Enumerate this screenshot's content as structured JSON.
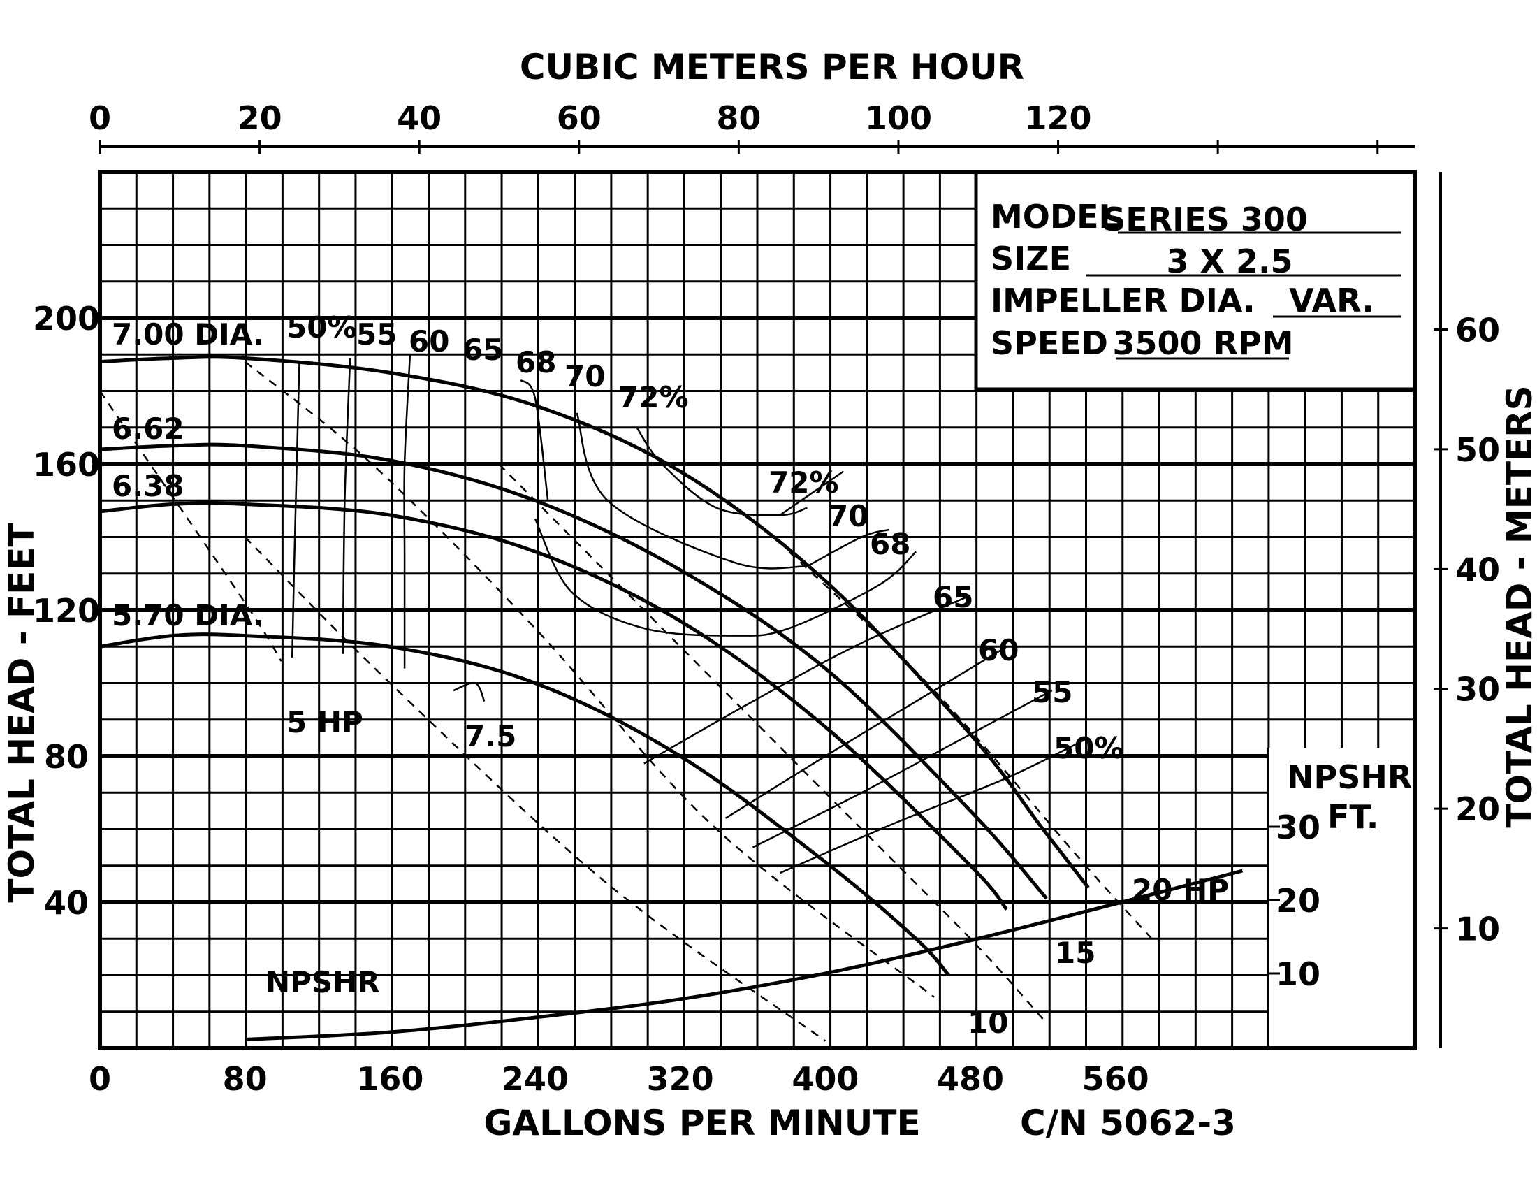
{
  "chart_data": {
    "type": "line",
    "title": "",
    "top_axis": {
      "label": "CUBIC METERS PER HOUR",
      "ticks": [
        "0",
        "20",
        "40",
        "60",
        "80",
        "100",
        "120"
      ],
      "range": [
        0,
        165
      ]
    },
    "x_axis": {
      "label": "GALLONS PER MINUTE",
      "ticks": [
        "0",
        "80",
        "160",
        "240",
        "320",
        "400",
        "480",
        "560"
      ],
      "range": [
        0,
        725
      ]
    },
    "y_axis": {
      "label": "TOTAL HEAD - FEET",
      "ticks": [
        "40",
        "80",
        "120",
        "160",
        "200"
      ],
      "range": [
        0,
        240
      ]
    },
    "right_axis": {
      "label": "TOTAL HEAD - METERS",
      "ticks": [
        "10",
        "20",
        "30",
        "40",
        "50",
        "60"
      ],
      "range": [
        0,
        73.2
      ]
    },
    "npshr_axis": {
      "title_line1": "NPSHR",
      "title_line2": "FT.",
      "ticks": [
        "10",
        "20",
        "30"
      ]
    },
    "grid": true,
    "info_box": {
      "model_label": "MODEL",
      "model_value": "SERIES 300",
      "size_label": "SIZE",
      "size_value": "3 X 2.5",
      "impeller_label": "IMPELLER DIA.",
      "impeller_value": "VAR.",
      "speed_label": "SPEED",
      "speed_value": "3500 RPM"
    },
    "catalog_number": "C/N 5062-3",
    "impeller_curves": [
      {
        "label": "7.00 DIA.",
        "points": [
          [
            0,
            188
          ],
          [
            40,
            189
          ],
          [
            80,
            189
          ],
          [
            160,
            185
          ],
          [
            240,
            176
          ],
          [
            320,
            158
          ],
          [
            400,
            128
          ],
          [
            480,
            86
          ],
          [
            520,
            60
          ],
          [
            545,
            44
          ]
        ]
      },
      {
        "label": "6.62",
        "points": [
          [
            0,
            164
          ],
          [
            40,
            165
          ],
          [
            80,
            165
          ],
          [
            160,
            161
          ],
          [
            240,
            150
          ],
          [
            320,
            131
          ],
          [
            400,
            104
          ],
          [
            480,
            65
          ],
          [
            522,
            41
          ]
        ]
      },
      {
        "label": "6.38",
        "points": [
          [
            0,
            147
          ],
          [
            40,
            149
          ],
          [
            80,
            149
          ],
          [
            160,
            146
          ],
          [
            240,
            136
          ],
          [
            320,
            117
          ],
          [
            400,
            88
          ],
          [
            480,
            50
          ],
          [
            500,
            38
          ]
        ]
      },
      {
        "label": "5.70 DIA.",
        "points": [
          [
            0,
            110
          ],
          [
            40,
            113
          ],
          [
            80,
            113
          ],
          [
            160,
            110
          ],
          [
            240,
            100
          ],
          [
            320,
            80
          ],
          [
            400,
            51
          ],
          [
            450,
            30
          ],
          [
            468,
            20
          ]
        ]
      }
    ],
    "efficiency_curves": [
      {
        "label": "50%",
        "points": [
          [
            106,
            107
          ],
          [
            107,
            130
          ],
          [
            110,
            188
          ]
        ]
      },
      {
        "label": "55",
        "points": [
          [
            134,
            108
          ],
          [
            135,
            150
          ],
          [
            138,
            189
          ]
        ]
      },
      {
        "label": "60",
        "points": [
          [
            168,
            104
          ],
          [
            168,
            135
          ],
          [
            168,
            160
          ],
          [
            171,
            190
          ]
        ]
      },
      {
        "label": "65",
        "points": [
          [
            195,
            98
          ],
          [
            207,
            100
          ],
          [
            212,
            95
          ]
        ]
      },
      {
        "label": "68",
        "points": [
          [
            247,
            150
          ],
          [
            240,
            178
          ],
          [
            232,
            183
          ]
        ]
      },
      {
        "label": "70",
        "points": [
          [
            263,
            174
          ],
          [
            280,
            150
          ],
          [
            350,
            133
          ],
          [
            390,
            132
          ]
        ]
      },
      {
        "label": "72%",
        "points": [
          [
            296,
            170
          ],
          [
            310,
            160
          ],
          [
            340,
            148
          ],
          [
            375,
            146
          ],
          [
            390,
            148
          ]
        ]
      },
      {
        "label": "72%",
        "points": [
          [
            375,
            146
          ],
          [
            410,
            158
          ]
        ]
      },
      {
        "label": "70",
        "points": [
          [
            390,
            132
          ],
          [
            420,
            140
          ],
          [
            435,
            142
          ]
        ]
      },
      {
        "label": "68",
        "points": [
          [
            240,
            145
          ],
          [
            260,
            125
          ],
          [
            300,
            115
          ],
          [
            350,
            113
          ],
          [
            380,
            115
          ],
          [
            430,
            127
          ],
          [
            450,
            136
          ]
        ]
      },
      {
        "label": "65",
        "points": [
          [
            300,
            78
          ],
          [
            360,
            95
          ],
          [
            420,
            111
          ],
          [
            480,
            124
          ]
        ]
      },
      {
        "label": "60",
        "points": [
          [
            345,
            63
          ],
          [
            400,
            80
          ],
          [
            460,
            98
          ],
          [
            500,
            110
          ]
        ]
      },
      {
        "label": "55",
        "points": [
          [
            360,
            55
          ],
          [
            420,
            70
          ],
          [
            480,
            86
          ],
          [
            525,
            98
          ]
        ]
      },
      {
        "label": "50%",
        "points": [
          [
            375,
            48
          ],
          [
            440,
            62
          ],
          [
            500,
            74
          ],
          [
            545,
            85
          ]
        ]
      }
    ],
    "hp_lines": [
      {
        "label": "5 HP",
        "points": [
          [
            0,
            180
          ],
          [
            80,
            122
          ],
          [
            100,
            106
          ]
        ]
      },
      {
        "label": "7.5",
        "points": [
          [
            80,
            188
          ],
          [
            150,
            160
          ],
          [
            240,
            115
          ],
          [
            340,
            60
          ],
          [
            460,
            14
          ]
        ]
      },
      {
        "label": "10",
        "points": [
          [
            80,
            140
          ],
          [
            160,
            100
          ],
          [
            280,
            45
          ],
          [
            400,
            2
          ]
        ]
      },
      {
        "label": "15",
        "points": [
          [
            220,
            160
          ],
          [
            300,
            120
          ],
          [
            400,
            70
          ],
          [
            480,
            30
          ],
          [
            520,
            8
          ]
        ]
      },
      {
        "label": "20 HP",
        "points": [
          [
            380,
            136
          ],
          [
            460,
            98
          ],
          [
            540,
            52
          ],
          [
            580,
            30
          ]
        ]
      }
    ],
    "npshr_curve": {
      "label": "NPSHR",
      "points": [
        [
          80,
          1
        ],
        [
          160,
          2
        ],
        [
          240,
          4
        ],
        [
          320,
          6.5
        ],
        [
          400,
          10
        ],
        [
          480,
          14.5
        ],
        [
          560,
          19.5
        ],
        [
          630,
          24
        ]
      ]
    }
  }
}
